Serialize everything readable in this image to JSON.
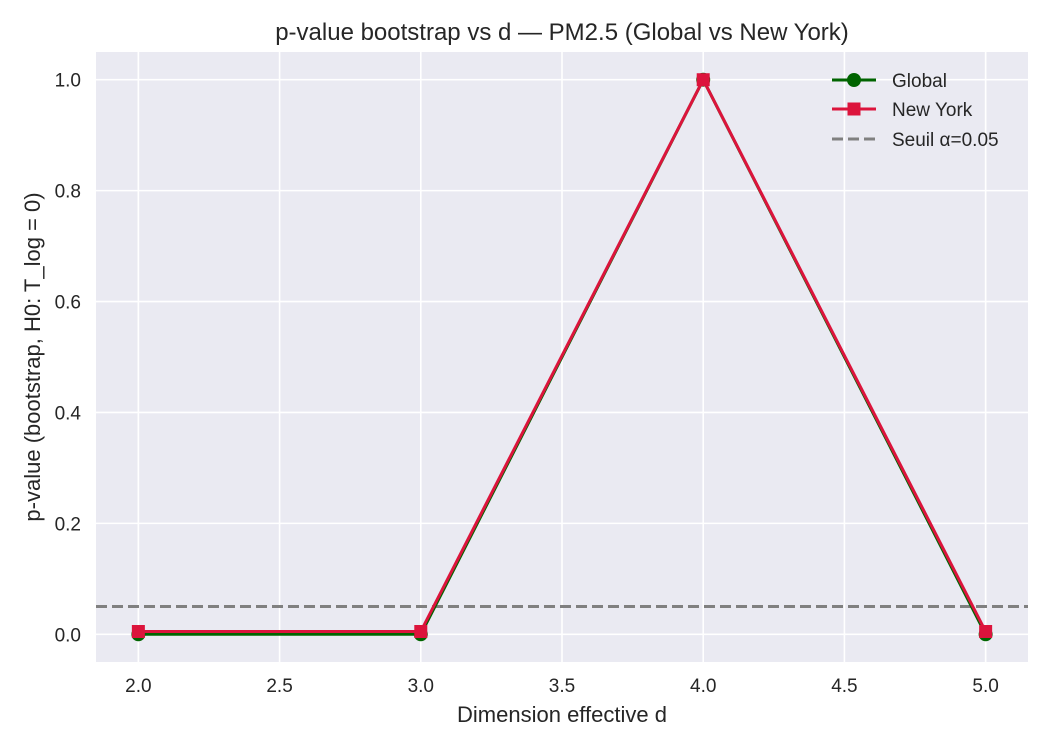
{
  "chart_data": {
    "type": "line",
    "title": "p-value bootstrap vs d — PM2.5 (Global vs New York)",
    "xlabel": "Dimension effective d",
    "ylabel": "p-value (bootstrap, H0: T_log = 0)",
    "xlim": [
      1.85,
      5.15
    ],
    "ylim": [
      -0.05,
      1.05
    ],
    "xticks": [
      2.0,
      2.5,
      3.0,
      3.5,
      4.0,
      4.5,
      5.0
    ],
    "xtick_labels": [
      "2.0",
      "2.5",
      "3.0",
      "3.5",
      "4.0",
      "4.5",
      "5.0"
    ],
    "yticks": [
      0.0,
      0.2,
      0.4,
      0.6,
      0.8,
      1.0
    ],
    "ytick_labels": [
      "0.0",
      "0.2",
      "0.4",
      "0.6",
      "0.8",
      "1.0"
    ],
    "grid": true,
    "legend_position": "top-right",
    "series": [
      {
        "name": "Global",
        "x": [
          2.0,
          3.0,
          4.0,
          5.0
        ],
        "values": [
          0.0,
          0.0,
          1.0,
          0.0
        ],
        "color": "#006400",
        "marker": "circle"
      },
      {
        "name": "New York",
        "x": [
          2.0,
          3.0,
          4.0,
          5.0
        ],
        "values": [
          0.005,
          0.005,
          1.0,
          0.005
        ],
        "color": "#dc143c",
        "marker": "square"
      }
    ],
    "hline": {
      "name": "Seuil α=0.05",
      "value": 0.05,
      "color": "#808080",
      "style": "dashed"
    },
    "background_color": "#eaeaf2"
  }
}
